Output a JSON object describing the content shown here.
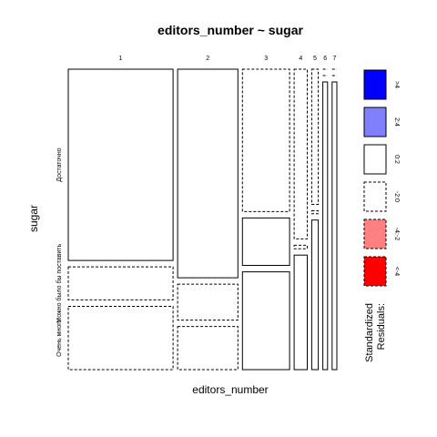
{
  "chart_data": {
    "type": "mosaic",
    "title": "editors_number ~ sugar",
    "xlabel": "editors_number",
    "ylabel": "sugar",
    "x_categories": [
      "1",
      "2",
      "3",
      "4",
      "5",
      "6",
      "7"
    ],
    "y_categories": [
      "Достаточно",
      "Можно было бы поставить",
      "Очень много"
    ],
    "column_proportions": [
      0.4,
      0.23,
      0.18,
      0.05,
      0.025,
      0.018,
      0.018
    ],
    "cell_proportions": [
      [
        0.665,
        0.115,
        0.22
      ],
      [
        0.725,
        0.125,
        0.15
      ],
      [
        0.495,
        0.165,
        0.34
      ],
      [
        0.59,
        0.012,
        0.398
      ],
      [
        0.47,
        0.01,
        0.52
      ],
      [
        0.0,
        0.0,
        0.99
      ],
      [
        0.0,
        0.0,
        1.0
      ]
    ],
    "cell_residual_band": [
      [
        "0:2",
        "-2:0",
        "-2:0"
      ],
      [
        "0:2",
        "-2:0",
        "-2:0"
      ],
      [
        "-2:0",
        "0:2",
        "0:2"
      ],
      [
        "-2:0",
        "-2:0",
        "0:2"
      ],
      [
        "-2:0",
        "-2:0",
        "0:2"
      ],
      [
        "-2:0",
        "-2:0",
        "0:2"
      ],
      [
        "-2:0",
        "-2:0",
        "0:2"
      ]
    ],
    "legend": {
      "title": "Standardized Residuals:",
      "placement": "right",
      "entries": [
        {
          "label": ">4",
          "fill": "#0000ff",
          "dash": false
        },
        {
          "label": "2:4",
          "fill": "#8080ff",
          "dash": false
        },
        {
          "label": "0:2",
          "fill": "#ffffff",
          "dash": false
        },
        {
          "label": "-2:0",
          "fill": "#ffffff",
          "dash": true
        },
        {
          "label": "-4:-2",
          "fill": "#ff8080",
          "dash": true
        },
        {
          "label": "<-4",
          "fill": "#ff0000",
          "dash": true
        }
      ]
    }
  }
}
